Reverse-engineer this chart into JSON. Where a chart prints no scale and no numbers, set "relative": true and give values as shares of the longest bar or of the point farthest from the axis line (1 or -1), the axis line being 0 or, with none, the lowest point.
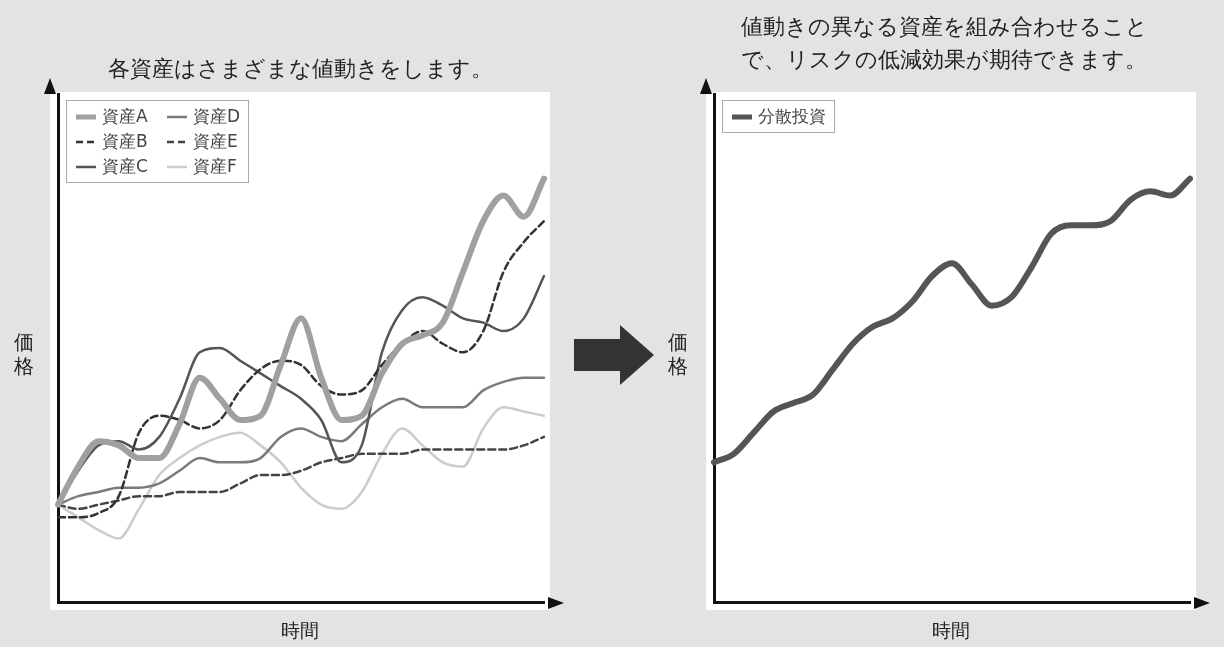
{
  "chart_data": [
    {
      "type": "line",
      "title": "各資産はさまざまな値動きをします。",
      "xlabel": "時間",
      "ylabel": "価格",
      "relative": true,
      "legend": "top left",
      "categories": [
        null,
        null,
        null,
        null,
        null,
        null,
        null,
        null,
        null,
        null,
        null,
        null,
        null,
        null,
        null,
        null,
        null,
        null,
        null,
        null,
        null,
        null,
        null,
        null,
        null
      ],
      "series": [
        {
          "name": "資産A",
          "color": "#a0a0a0",
          "line_style": "solid",
          "values": [
            0.23,
            0.32,
            0.38,
            0.37,
            0.34,
            0.34,
            0.42,
            0.53,
            0.48,
            0.43,
            0.44,
            0.56,
            0.67,
            0.53,
            0.43,
            0.44,
            0.54,
            0.61,
            0.63,
            0.66,
            0.78,
            0.9,
            0.96,
            0.91,
            1
          ]
        },
        {
          "name": "資産B",
          "color": "#333333",
          "line_style": "dashed",
          "values": [
            0.2,
            0.2,
            0.21,
            0.25,
            0.4,
            0.44,
            0.43,
            0.41,
            0.43,
            0.5,
            0.55,
            0.57,
            0.56,
            0.51,
            0.49,
            0.5,
            0.56,
            0.61,
            0.64,
            0.61,
            0.59,
            0.64,
            0.78,
            0.85,
            0.9
          ]
        },
        {
          "name": "資産C",
          "color": "#555555",
          "line_style": "solid",
          "values": [
            0.23,
            0.31,
            0.37,
            0.38,
            0.36,
            0.39,
            0.48,
            0.59,
            0.6,
            0.57,
            0.54,
            0.51,
            0.48,
            0.43,
            0.33,
            0.37,
            0.59,
            0.69,
            0.72,
            0.7,
            0.67,
            0.66,
            0.64,
            0.67,
            0.77
          ]
        },
        {
          "name": "資産D",
          "color": "#7a7a7a",
          "line_style": "solid",
          "values": [
            0.23,
            0.25,
            0.26,
            0.27,
            0.27,
            0.28,
            0.31,
            0.34,
            0.33,
            0.33,
            0.34,
            0.39,
            0.41,
            0.39,
            0.38,
            0.42,
            0.46,
            0.48,
            0.46,
            0.46,
            0.46,
            0.5,
            0.52,
            0.53,
            0.53
          ]
        },
        {
          "name": "資産E",
          "color": "#444444",
          "line_style": "dashed",
          "values": [
            0.23,
            0.22,
            0.23,
            0.24,
            0.25,
            0.25,
            0.26,
            0.26,
            0.26,
            0.28,
            0.3,
            0.3,
            0.31,
            0.33,
            0.34,
            0.35,
            0.35,
            0.35,
            0.36,
            0.36,
            0.36,
            0.36,
            0.36,
            0.37,
            0.39
          ]
        },
        {
          "name": "資産F",
          "color": "#cccccc",
          "line_style": "solid",
          "values": [
            0.23,
            0.2,
            0.17,
            0.15,
            0.22,
            0.3,
            0.34,
            0.37,
            0.39,
            0.4,
            0.37,
            0.33,
            0.27,
            0.23,
            0.22,
            0.26,
            0.35,
            0.41,
            0.37,
            0.33,
            0.32,
            0.41,
            0.46,
            0.45,
            0.44
          ]
        }
      ]
    },
    {
      "type": "line",
      "title": "値動きの異なる資産を組み合わせることで、リスクの低減効果が期待できます。",
      "xlabel": "時間",
      "ylabel": "価格",
      "relative": true,
      "legend": "top left",
      "categories": [
        null,
        null,
        null,
        null,
        null,
        null,
        null,
        null,
        null,
        null,
        null,
        null,
        null,
        null,
        null,
        null,
        null,
        null,
        null,
        null,
        null,
        null,
        null,
        null,
        null
      ],
      "series": [
        {
          "name": "分散投資",
          "color": "#555555",
          "line_style": "solid",
          "values": [
            0.33,
            0.35,
            0.4,
            0.45,
            0.47,
            0.49,
            0.55,
            0.61,
            0.65,
            0.67,
            0.71,
            0.77,
            0.8,
            0.75,
            0.7,
            0.72,
            0.79,
            0.87,
            0.89,
            0.89,
            0.9,
            0.95,
            0.97,
            0.96,
            1
          ]
        }
      ]
    }
  ]
}
